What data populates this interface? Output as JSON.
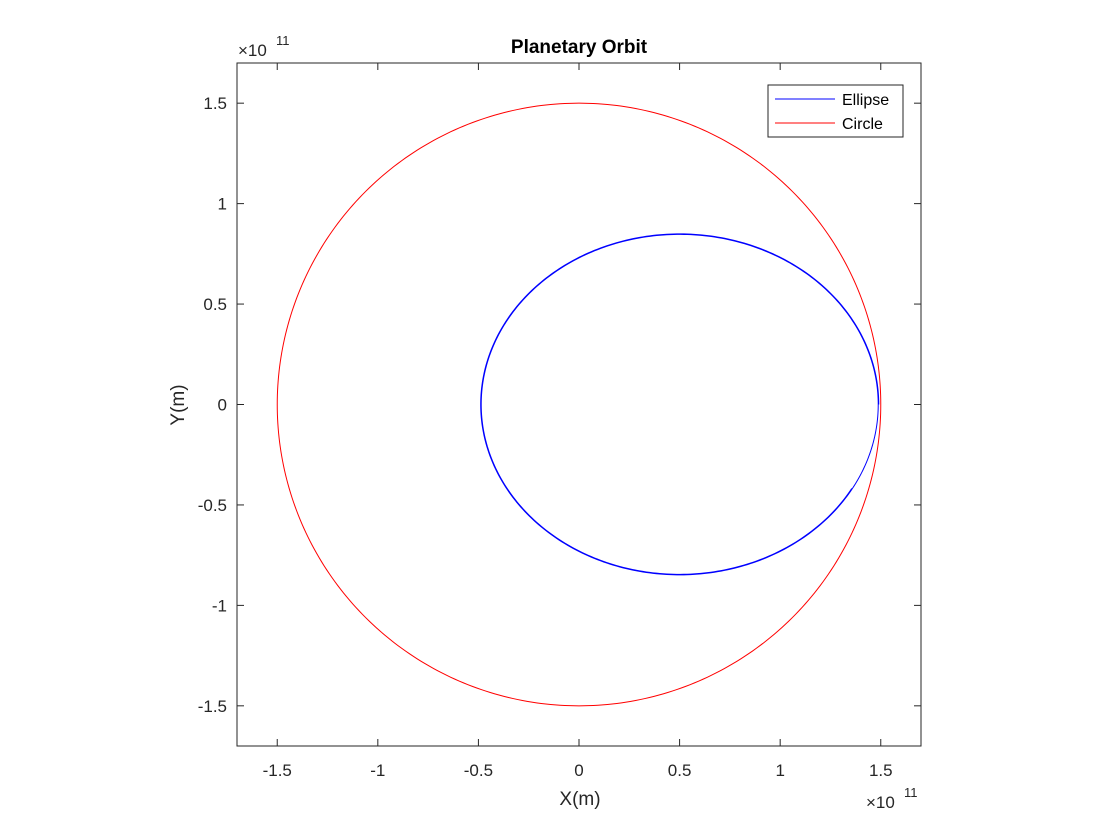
{
  "chart_data": {
    "type": "line",
    "title": "Planetary Orbit",
    "xlabel": "X(m)",
    "ylabel": "Y(m)",
    "xlim": [
      -170000000000.0,
      170000000000.0
    ],
    "ylim": [
      -170000000000.0,
      170000000000.0
    ],
    "x_multiplier_label": "×10",
    "x_exponent": "11",
    "y_multiplier_label": "×10",
    "y_exponent": "11",
    "x_ticks": [
      -1.5,
      -1,
      -0.5,
      0,
      0.5,
      1,
      1.5
    ],
    "x_tick_labels": [
      "-1.5",
      "-1",
      "-0.5",
      "0",
      "0.5",
      "1",
      "1.5"
    ],
    "y_ticks": [
      -1.5,
      -1,
      -0.5,
      0,
      0.5,
      1,
      1.5
    ],
    "y_tick_labels": [
      "-1.5",
      "-1",
      "-0.5",
      "0",
      "0.5",
      "1",
      "1.5"
    ],
    "grid": false,
    "box": true,
    "legend_position": "top-right",
    "series": [
      {
        "name": "Ellipse",
        "color": "#0000ff",
        "shape": "ellipse",
        "center": [
          50000000000.0,
          0
        ],
        "semi_axes": [
          99000000000.0,
          85000000000.0
        ],
        "secondary_semi_axes": [
          98500000000.0,
          84500000000.0
        ],
        "end_point": [
          134000000000.0,
          -41000000000.0
        ]
      },
      {
        "name": "Circle",
        "color": "#ff0000",
        "shape": "circle",
        "center": [
          0,
          0
        ],
        "radius": 150000000000.0
      }
    ]
  }
}
